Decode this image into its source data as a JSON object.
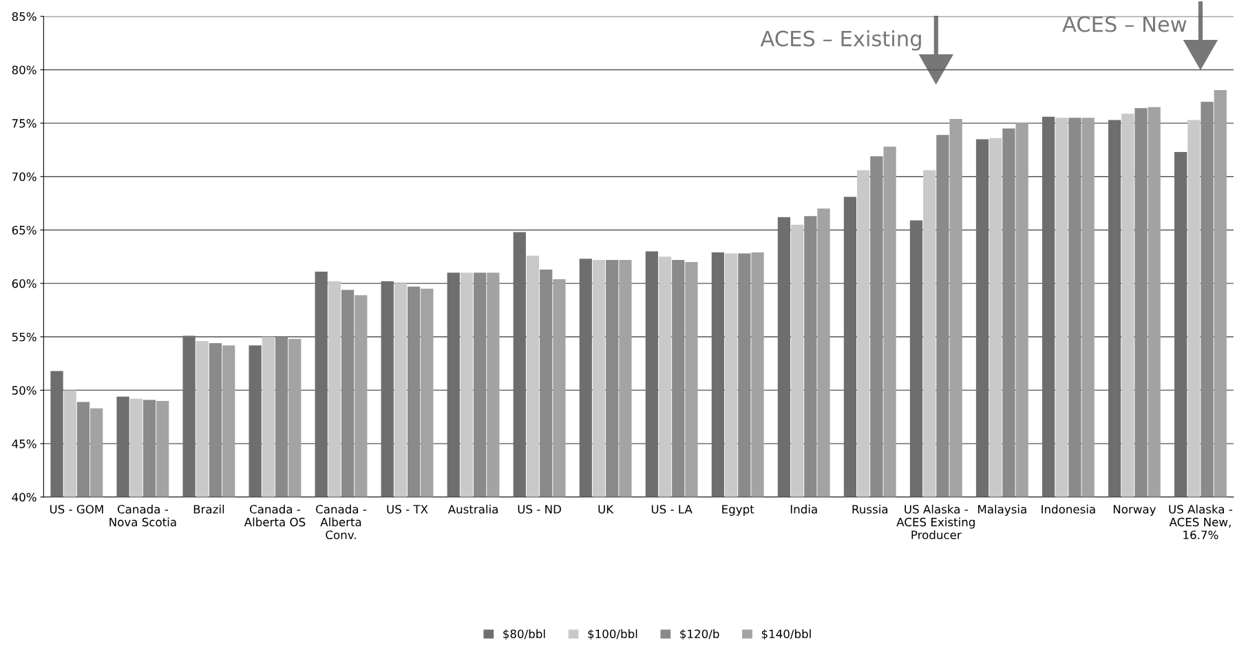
{
  "chart_data": {
    "type": "bar",
    "categories": [
      "US - GOM",
      "Canada -\nNova Scotia",
      "Brazil",
      "Canada -\nAlberta OS",
      "Canada -\nAlberta\nConv.",
      "US - TX",
      "Australia",
      "US - ND",
      "UK",
      "US - LA",
      "Egypt",
      "India",
      "Russia",
      "US Alaska -\nACES Existing\nProducer",
      "Malaysia",
      "Indonesia",
      "Norway",
      "US Alaska -\nACES New,\n16.7%"
    ],
    "series": [
      {
        "name": "$80/bbl",
        "color": "#6e6e6e",
        "values": [
          51.8,
          49.4,
          55.1,
          54.2,
          61.1,
          60.2,
          61.0,
          64.8,
          62.3,
          63.0,
          62.9,
          66.2,
          68.1,
          65.9,
          73.5,
          75.6,
          75.3,
          72.3
        ]
      },
      {
        "name": "$100/bbl",
        "color": "#c9c9c9",
        "values": [
          50.0,
          49.2,
          54.6,
          55.0,
          60.2,
          60.0,
          61.0,
          62.6,
          62.2,
          62.5,
          62.8,
          65.5,
          70.6,
          70.6,
          73.6,
          75.5,
          75.9,
          75.3
        ]
      },
      {
        "name": "$120/b",
        "color": "#8a8a8a",
        "values": [
          48.9,
          49.1,
          54.4,
          55.0,
          59.4,
          59.7,
          61.0,
          61.3,
          62.2,
          62.2,
          62.8,
          66.3,
          71.9,
          73.9,
          74.5,
          75.5,
          76.4,
          77.0
        ]
      },
      {
        "name": "$140/bbl",
        "color": "#a3a3a3",
        "values": [
          48.3,
          49.0,
          54.2,
          54.8,
          58.9,
          59.5,
          61.0,
          60.4,
          62.2,
          62.0,
          62.9,
          67.0,
          72.8,
          75.4,
          75.0,
          75.5,
          76.5,
          78.1
        ]
      }
    ],
    "ylim": [
      40,
      85
    ],
    "yticks": [
      {
        "value": 40,
        "label": "40%"
      },
      {
        "value": 45,
        "label": "45%"
      },
      {
        "value": 50,
        "label": "50%"
      },
      {
        "value": 55,
        "label": "55%"
      },
      {
        "value": 60,
        "label": "60%"
      },
      {
        "value": 65,
        "label": "65%"
      },
      {
        "value": 70,
        "label": "70%"
      },
      {
        "value": 75,
        "label": "75%"
      },
      {
        "value": 80,
        "label": "80%"
      },
      {
        "value": 85,
        "label": "85%"
      }
    ],
    "grid": "y",
    "legend": "bottom",
    "annotations": [
      "ACES – Existing",
      "ACES – New"
    ]
  }
}
